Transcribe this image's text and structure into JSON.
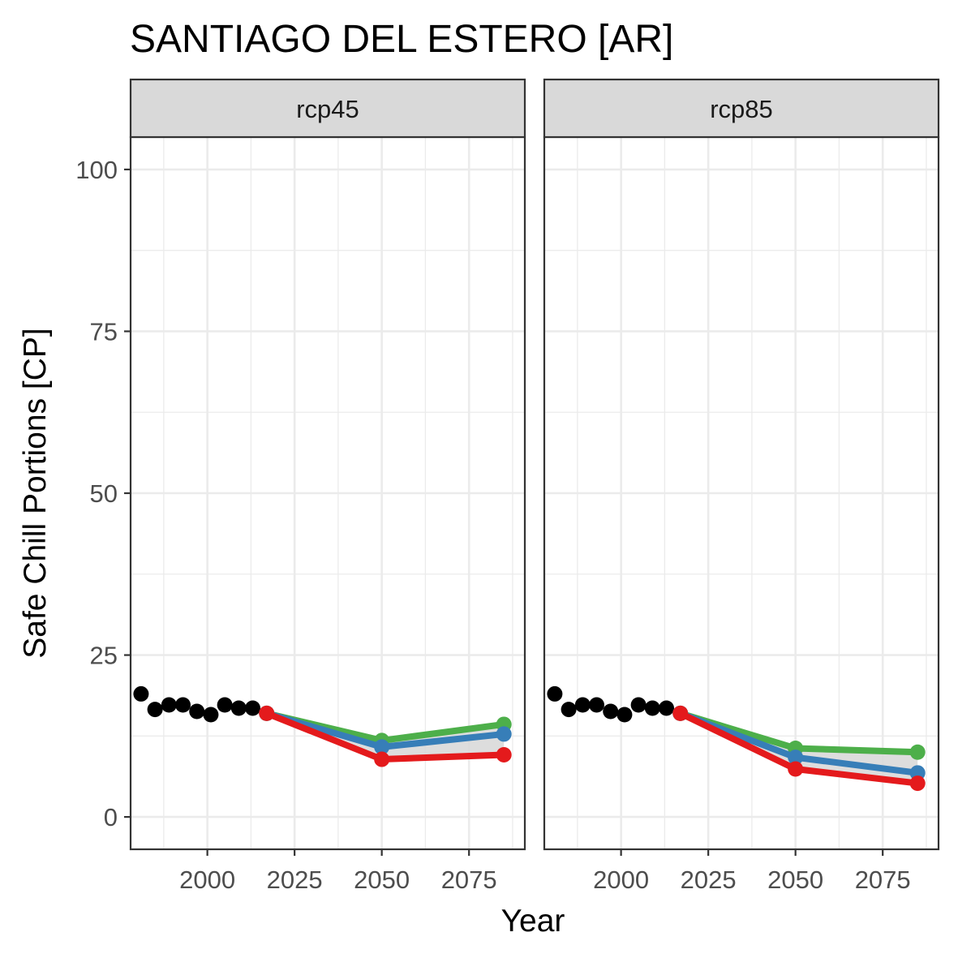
{
  "chart_data": {
    "type": "line",
    "title": "SANTIAGO DEL ESTERO [AR]",
    "xlabel": "Year",
    "ylabel": "Safe Chill Portions [CP]",
    "xlim": [
      1978,
      2091
    ],
    "ylim": [
      -5,
      105
    ],
    "x_ticks": [
      2000,
      2025,
      2050,
      2075
    ],
    "x_tick_labels": [
      "2000",
      "2025",
      "2050",
      "2075"
    ],
    "y_ticks": [
      0,
      25,
      50,
      75,
      100
    ],
    "y_tick_labels": [
      "0",
      "25",
      "50",
      "75",
      "100"
    ],
    "grid": true,
    "legend": "none",
    "colors": {
      "historic": "#000000",
      "optimistic": "#4daf4a",
      "intermediate": "#377eb8",
      "pessimistic": "#e41a1c",
      "ribbon": "#d9d9d9",
      "strip_bg": "#d9d9d9",
      "grid": "#ebebeb",
      "panel_border": "#333333"
    },
    "historic": {
      "x": [
        1981,
        1985,
        1989,
        1993,
        1997,
        2001,
        2005,
        2009,
        2013
      ],
      "y": [
        19.0,
        16.6,
        17.3,
        17.3,
        16.3,
        15.8,
        17.3,
        16.8,
        16.8
      ]
    },
    "panels": [
      {
        "label": "rcp45",
        "scenarios": {
          "optimistic": {
            "x": [
              2017,
              2050,
              2085
            ],
            "y": [
              16.0,
              11.8,
              14.3
            ]
          },
          "intermediate": {
            "x": [
              2017,
              2050,
              2085
            ],
            "y": [
              16.0,
              10.8,
              12.8
            ]
          },
          "pessimistic": {
            "x": [
              2017,
              2050,
              2085
            ],
            "y": [
              16.0,
              8.9,
              9.6
            ]
          }
        }
      },
      {
        "label": "rcp85",
        "scenarios": {
          "optimistic": {
            "x": [
              2017,
              2050,
              2085
            ],
            "y": [
              16.0,
              10.6,
              10.0
            ]
          },
          "intermediate": {
            "x": [
              2017,
              2050,
              2085
            ],
            "y": [
              16.0,
              9.2,
              6.8
            ]
          },
          "pessimistic": {
            "x": [
              2017,
              2050,
              2085
            ],
            "y": [
              16.0,
              7.4,
              5.2
            ]
          }
        }
      }
    ]
  }
}
